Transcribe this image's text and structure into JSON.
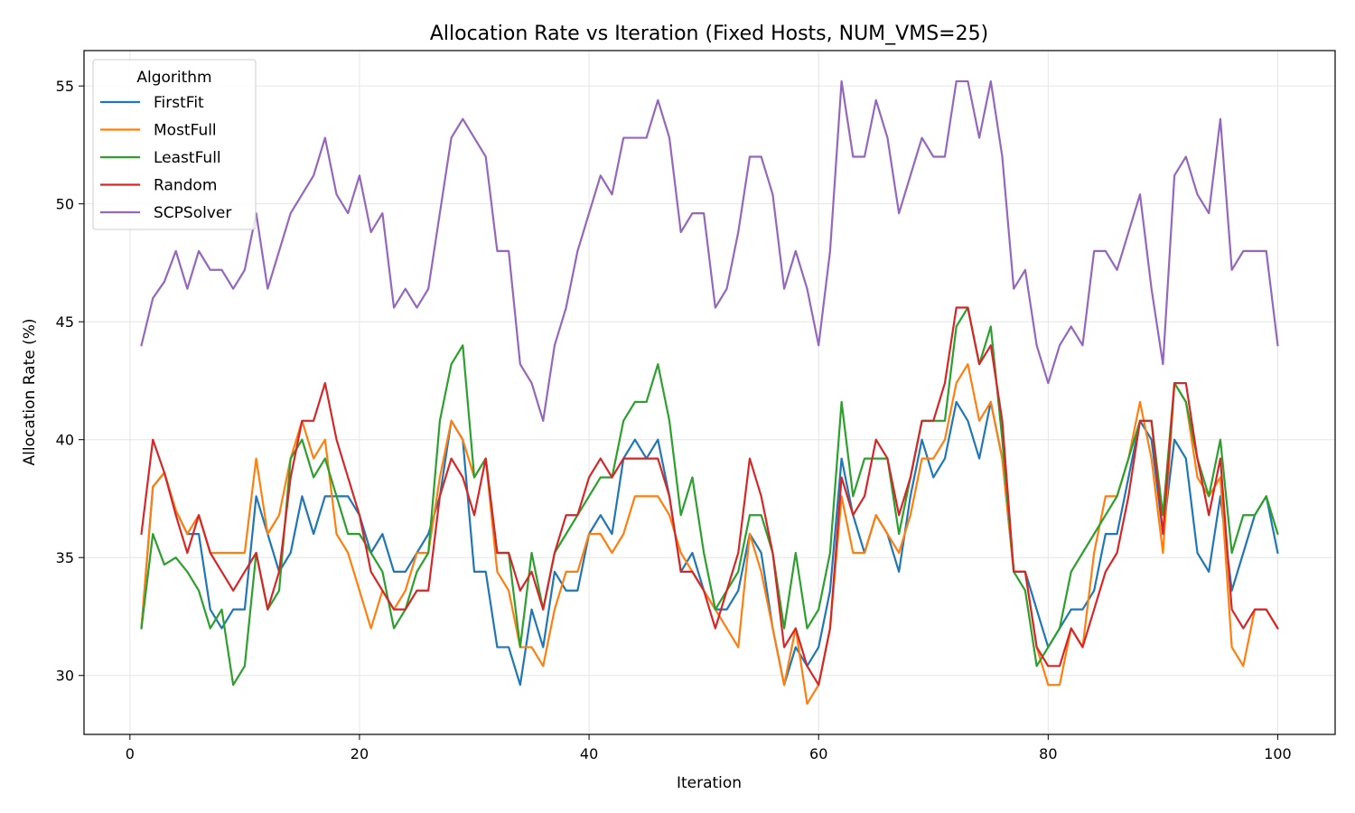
{
  "chart_data": {
    "type": "line",
    "title": "Allocation Rate vs Iteration (Fixed Hosts, NUM_VMS=25)",
    "xlabel": "Iteration",
    "ylabel": "Allocation Rate (%)",
    "xlim": [
      -4,
      105
    ],
    "ylim": [
      27.5,
      56.5
    ],
    "xticks": [
      0,
      20,
      40,
      60,
      80,
      100
    ],
    "yticks": [
      30,
      35,
      40,
      45,
      50,
      55
    ],
    "grid": true,
    "legend": {
      "title": "Algorithm",
      "position": "top-left"
    },
    "x_start": 1,
    "series": [
      {
        "name": "FirstFit",
        "color": "#1f77b4",
        "values": [
          32.0,
          38.0,
          38.6,
          37.0,
          36.0,
          36.0,
          32.8,
          32.0,
          32.8,
          32.8,
          37.6,
          36.0,
          34.4,
          35.2,
          37.6,
          36.0,
          37.6,
          37.6,
          37.6,
          36.8,
          35.2,
          36.0,
          34.4,
          34.4,
          35.2,
          36.0,
          37.6,
          40.8,
          40.0,
          34.4,
          34.4,
          31.2,
          31.2,
          29.6,
          32.8,
          31.2,
          34.4,
          33.6,
          33.6,
          36.0,
          36.8,
          36.0,
          39.2,
          40.0,
          39.2,
          40.0,
          37.6,
          34.4,
          35.2,
          33.6,
          32.8,
          32.8,
          33.6,
          36.0,
          35.2,
          32.0,
          29.6,
          31.2,
          30.4,
          31.2,
          33.6,
          39.2,
          36.8,
          35.2,
          36.8,
          36.0,
          34.4,
          37.6,
          40.0,
          38.4,
          39.2,
          41.6,
          40.8,
          39.2,
          41.6,
          39.2,
          34.4,
          34.4,
          32.8,
          31.2,
          32.0,
          32.8,
          32.8,
          33.6,
          36.0,
          36.0,
          38.4,
          40.8,
          40.0,
          36.0,
          40.0,
          39.2,
          35.2,
          34.4,
          37.6,
          33.6,
          35.2,
          36.8,
          37.6,
          35.2
        ]
      },
      {
        "name": "MostFull",
        "color": "#ff7f0e",
        "values": [
          32.0,
          38.0,
          38.6,
          37.0,
          36.0,
          36.8,
          35.2,
          35.2,
          35.2,
          35.2,
          39.2,
          36.0,
          36.8,
          39.2,
          40.8,
          39.2,
          40.0,
          36.0,
          35.2,
          33.6,
          32.0,
          33.6,
          32.8,
          33.6,
          35.2,
          35.2,
          38.4,
          40.8,
          40.0,
          38.4,
          39.2,
          34.4,
          33.6,
          31.2,
          31.2,
          30.4,
          32.8,
          34.4,
          34.4,
          36.0,
          36.0,
          35.2,
          36.0,
          37.6,
          37.6,
          37.6,
          36.8,
          35.2,
          34.4,
          33.6,
          32.8,
          32.0,
          31.2,
          36.0,
          34.4,
          32.0,
          29.6,
          32.0,
          28.8,
          29.6,
          32.0,
          37.6,
          35.2,
          35.2,
          36.8,
          36.0,
          35.2,
          36.8,
          39.2,
          39.2,
          40.0,
          42.4,
          43.2,
          40.8,
          41.6,
          39.2,
          34.4,
          34.4,
          31.2,
          29.6,
          29.6,
          32.0,
          31.2,
          35.2,
          37.6,
          37.6,
          39.2,
          41.6,
          39.2,
          35.2,
          42.4,
          41.6,
          38.4,
          37.6,
          38.4,
          31.2,
          30.4,
          32.8,
          32.8,
          32.0
        ]
      },
      {
        "name": "LeastFull",
        "color": "#2ca02c",
        "values": [
          32.0,
          36.0,
          34.7,
          35.0,
          34.4,
          33.6,
          32.0,
          32.8,
          29.6,
          30.4,
          35.2,
          32.8,
          33.6,
          39.2,
          40.0,
          38.4,
          39.2,
          37.6,
          36.0,
          36.0,
          35.2,
          34.4,
          32.0,
          32.8,
          34.4,
          35.2,
          40.8,
          43.2,
          44.0,
          38.4,
          39.2,
          35.2,
          35.2,
          31.2,
          35.2,
          32.8,
          35.2,
          36.0,
          36.8,
          37.6,
          38.4,
          38.4,
          40.8,
          41.6,
          41.6,
          43.2,
          40.8,
          36.8,
          38.4,
          35.2,
          32.8,
          33.6,
          34.4,
          36.8,
          36.8,
          35.2,
          32.0,
          35.2,
          32.0,
          32.8,
          35.2,
          41.6,
          37.6,
          39.2,
          39.2,
          39.2,
          36.0,
          38.4,
          40.8,
          40.8,
          40.8,
          44.8,
          45.6,
          43.2,
          44.8,
          40.0,
          34.4,
          33.6,
          30.4,
          31.2,
          32.0,
          34.4,
          35.2,
          36.0,
          36.8,
          37.6,
          39.2,
          40.8,
          40.8,
          36.8,
          42.4,
          41.6,
          39.2,
          37.6,
          40.0,
          35.2,
          36.8,
          36.8,
          37.6,
          36.0
        ]
      },
      {
        "name": "Random",
        "color": "#d62728",
        "values": [
          36.0,
          40.0,
          38.6,
          36.8,
          35.2,
          36.8,
          35.2,
          34.4,
          33.6,
          34.4,
          35.2,
          32.8,
          34.4,
          38.4,
          40.8,
          40.8,
          42.4,
          40.0,
          38.4,
          36.8,
          34.4,
          33.6,
          32.8,
          32.8,
          33.6,
          33.6,
          37.6,
          39.2,
          38.4,
          36.8,
          39.2,
          35.2,
          35.2,
          33.6,
          34.4,
          32.8,
          35.2,
          36.8,
          36.8,
          38.4,
          39.2,
          38.4,
          39.2,
          39.2,
          39.2,
          39.2,
          37.6,
          34.4,
          34.4,
          33.6,
          32.0,
          33.6,
          35.2,
          39.2,
          37.6,
          35.2,
          31.2,
          32.0,
          30.4,
          29.6,
          32.0,
          38.4,
          36.8,
          37.6,
          40.0,
          39.2,
          36.8,
          38.4,
          40.8,
          40.8,
          42.4,
          45.6,
          45.6,
          43.2,
          44.0,
          40.8,
          34.4,
          34.4,
          31.2,
          30.4,
          30.4,
          32.0,
          31.2,
          32.8,
          34.4,
          35.2,
          37.6,
          40.8,
          40.8,
          36.0,
          42.4,
          42.4,
          39.2,
          36.8,
          39.2,
          32.8,
          32.0,
          32.8,
          32.8,
          32.0
        ]
      },
      {
        "name": "SCPSolver",
        "color": "#9467bd",
        "values": [
          44.0,
          46.0,
          46.7,
          48.0,
          46.4,
          48.0,
          47.2,
          47.2,
          46.4,
          47.2,
          49.6,
          46.4,
          48.0,
          49.6,
          50.4,
          51.2,
          52.8,
          50.4,
          49.6,
          51.2,
          48.8,
          49.6,
          45.6,
          46.4,
          45.6,
          46.4,
          49.6,
          52.8,
          53.6,
          52.8,
          52.0,
          48.0,
          48.0,
          43.2,
          42.4,
          40.8,
          44.0,
          45.6,
          48.0,
          49.6,
          51.2,
          50.4,
          52.8,
          52.8,
          52.8,
          54.4,
          52.8,
          48.8,
          49.6,
          49.6,
          45.6,
          46.4,
          48.8,
          52.0,
          52.0,
          50.4,
          46.4,
          48.0,
          46.4,
          44.0,
          48.0,
          55.2,
          52.0,
          52.0,
          54.4,
          52.8,
          49.6,
          51.2,
          52.8,
          52.0,
          52.0,
          55.2,
          55.2,
          52.8,
          55.2,
          52.0,
          46.4,
          47.2,
          44.0,
          42.4,
          44.0,
          44.8,
          44.0,
          48.0,
          48.0,
          47.2,
          48.8,
          50.4,
          46.4,
          43.2,
          51.2,
          52.0,
          50.4,
          49.6,
          53.6,
          47.2,
          48.0,
          48.0,
          48.0,
          44.0
        ]
      }
    ]
  }
}
